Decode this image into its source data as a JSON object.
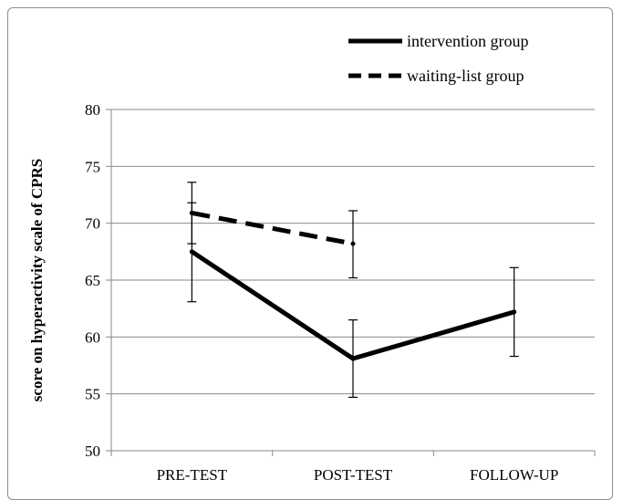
{
  "chart_data": {
    "type": "line",
    "categories": [
      "PRE-TEST",
      "POST-TEST",
      "FOLLOW-UP"
    ],
    "ylabel": "score on hyperactivity scale of CPRS",
    "xlabel": "",
    "ylim": [
      50,
      80
    ],
    "yticks": [
      50,
      55,
      60,
      65,
      70,
      75,
      80
    ],
    "grid": true,
    "legend_position": "top-right",
    "series": [
      {
        "name": "intervention group",
        "style": "solid",
        "color": "#000000",
        "values": [
          67.5,
          58.1,
          62.2
        ],
        "error_low": [
          63.1,
          54.7,
          58.3
        ],
        "error_high": [
          71.8,
          61.5,
          66.1
        ]
      },
      {
        "name": "waiting-list group",
        "style": "dashed",
        "color": "#000000",
        "values": [
          70.9,
          68.2,
          null
        ],
        "error_low": [
          68.2,
          65.2,
          null
        ],
        "error_high": [
          73.6,
          71.1,
          null
        ]
      }
    ]
  }
}
